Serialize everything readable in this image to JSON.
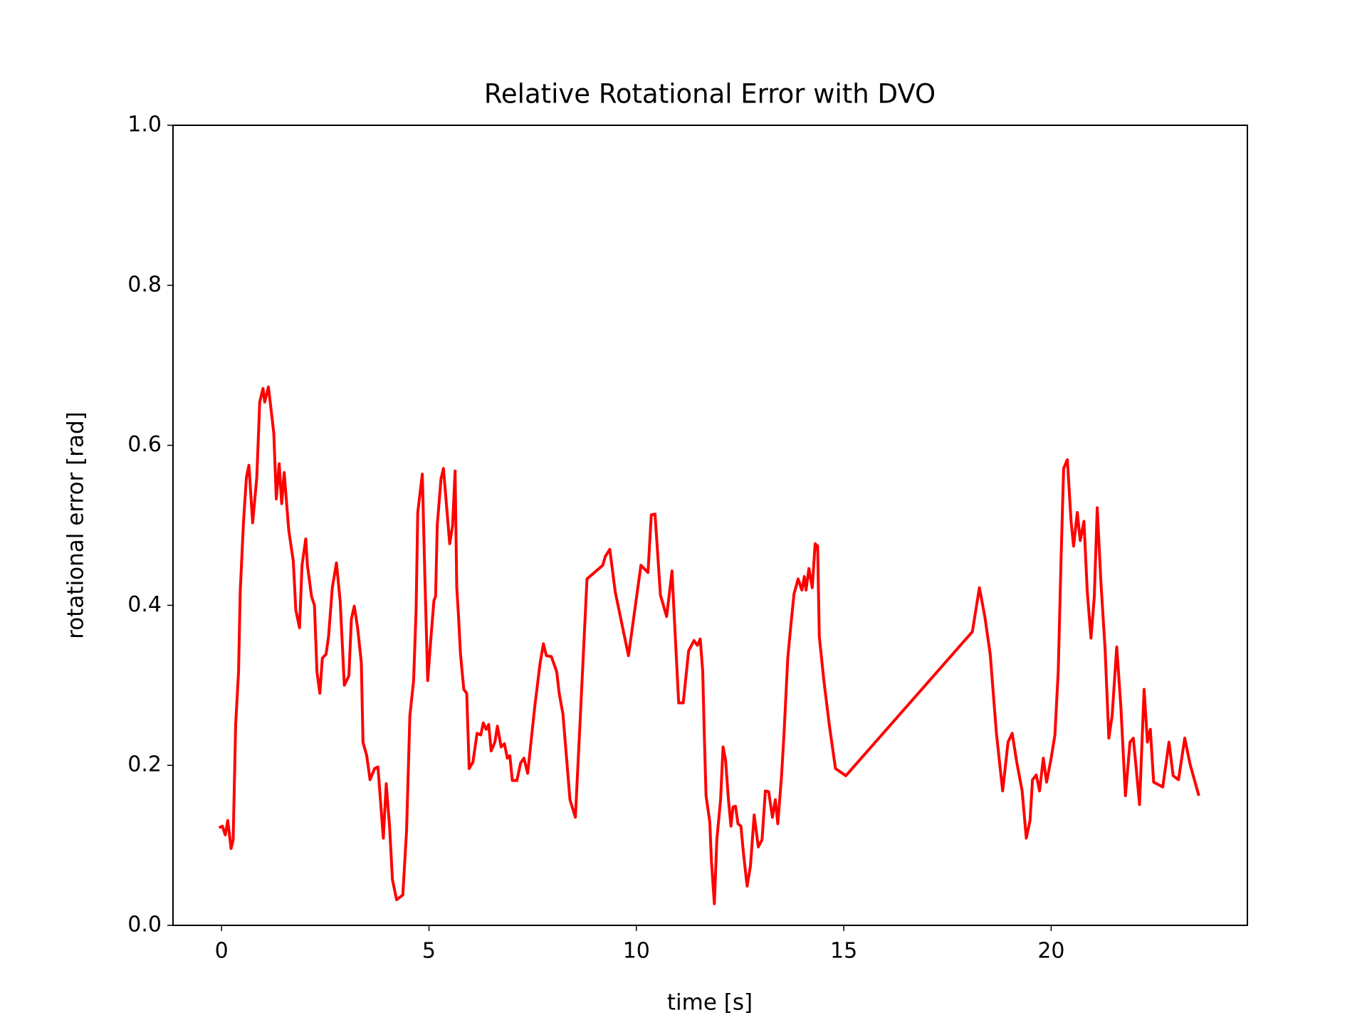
{
  "chart_data": {
    "type": "line",
    "title": "Relative Rotational Error with DVO",
    "x_label": "time [s]",
    "y_label": "rotational error [rad]",
    "xlim": [
      -1.17,
      24.73
    ],
    "ylim": [
      0,
      1
    ],
    "xticks": [
      0,
      5,
      10,
      15,
      20
    ],
    "yticks": [
      {
        "value": 0,
        "label": "0.0"
      },
      0.2,
      0.4,
      0.6,
      0.8,
      {
        "value": 1,
        "label": "1.0"
      }
    ],
    "grid": false,
    "series": [
      {
        "color": "#ff0000",
        "x": [
          -0.06,
          0.02,
          0.09,
          0.15,
          0.23,
          0.28,
          0.34,
          0.41,
          0.45,
          0.53,
          0.6,
          0.66,
          0.75,
          0.85,
          0.92,
          1.0,
          1.04,
          1.13,
          1.26,
          1.32,
          1.39,
          1.45,
          1.51,
          1.62,
          1.73,
          1.79,
          1.88,
          1.94,
          2.03,
          2.07,
          2.17,
          2.24,
          2.3,
          2.37,
          2.43,
          2.52,
          2.58,
          2.67,
          2.77,
          2.86,
          2.96,
          3.07,
          3.13,
          3.2,
          3.28,
          3.37,
          3.41,
          3.5,
          3.58,
          3.69,
          3.77,
          3.9,
          3.97,
          4.05,
          4.12,
          4.22,
          4.37,
          4.46,
          4.54,
          4.63,
          4.69,
          4.73,
          4.84,
          4.9,
          4.97,
          5.05,
          5.12,
          5.16,
          5.2,
          5.29,
          5.35,
          5.42,
          5.5,
          5.57,
          5.63,
          5.67,
          5.71,
          5.76,
          5.84,
          5.91,
          5.97,
          6.06,
          6.16,
          6.25,
          6.31,
          6.38,
          6.44,
          6.5,
          6.59,
          6.65,
          6.74,
          6.82,
          6.89,
          6.95,
          7.01,
          7.12,
          7.21,
          7.29,
          7.38,
          7.46,
          7.55,
          7.68,
          7.76,
          7.83,
          7.95,
          8.08,
          8.14,
          8.23,
          8.4,
          8.53,
          8.64,
          8.81,
          9.19,
          9.25,
          9.36,
          9.49,
          9.81,
          10.11,
          10.28,
          10.36,
          10.45,
          10.58,
          10.73,
          10.86,
          10.9,
          11.02,
          11.13,
          11.26,
          11.39,
          11.47,
          11.54,
          11.6,
          11.64,
          11.68,
          11.77,
          11.81,
          11.88,
          11.94,
          12.03,
          12.09,
          12.15,
          12.22,
          12.28,
          12.33,
          12.39,
          12.45,
          12.52,
          12.58,
          12.67,
          12.75,
          12.84,
          12.94,
          13.03,
          13.11,
          13.19,
          13.28,
          13.35,
          13.41,
          13.5,
          13.56,
          13.65,
          13.73,
          13.8,
          13.9,
          13.99,
          14.05,
          14.09,
          14.16,
          14.24,
          14.31,
          14.37,
          14.41,
          14.52,
          14.65,
          14.8,
          15.05,
          18.1,
          18.27,
          18.4,
          18.53,
          18.68,
          18.83,
          18.96,
          19.06,
          19.17,
          19.3,
          19.4,
          19.49,
          19.55,
          19.64,
          19.72,
          19.81,
          19.89,
          20.0,
          20.09,
          20.17,
          20.24,
          20.3,
          20.39,
          20.48,
          20.54,
          20.63,
          20.7,
          20.79,
          20.87,
          20.96,
          21.04,
          21.11,
          21.2,
          21.3,
          21.39,
          21.47,
          21.58,
          21.68,
          21.79,
          21.9,
          21.98,
          22.05,
          22.13,
          22.24,
          22.32,
          22.39,
          22.47,
          22.69,
          22.84,
          22.94,
          23.07,
          23.22,
          23.35,
          23.56
        ],
        "values": [
          0.122,
          0.124,
          0.113,
          0.131,
          0.096,
          0.107,
          0.251,
          0.317,
          0.417,
          0.505,
          0.56,
          0.575,
          0.503,
          0.56,
          0.654,
          0.671,
          0.654,
          0.673,
          0.615,
          0.533,
          0.577,
          0.527,
          0.566,
          0.494,
          0.455,
          0.394,
          0.372,
          0.45,
          0.483,
          0.45,
          0.411,
          0.4,
          0.317,
          0.29,
          0.334,
          0.339,
          0.361,
          0.422,
          0.453,
          0.405,
          0.3,
          0.312,
          0.383,
          0.399,
          0.372,
          0.328,
          0.229,
          0.212,
          0.182,
          0.196,
          0.198,
          0.109,
          0.177,
          0.124,
          0.057,
          0.032,
          0.038,
          0.118,
          0.262,
          0.306,
          0.394,
          0.516,
          0.564,
          0.439,
          0.306,
          0.361,
          0.406,
          0.411,
          0.5,
          0.558,
          0.571,
          0.527,
          0.477,
          0.5,
          0.568,
          0.422,
          0.389,
          0.339,
          0.295,
          0.29,
          0.196,
          0.204,
          0.24,
          0.238,
          0.253,
          0.245,
          0.251,
          0.218,
          0.229,
          0.249,
          0.223,
          0.227,
          0.209,
          0.212,
          0.181,
          0.181,
          0.203,
          0.209,
          0.19,
          0.229,
          0.273,
          0.328,
          0.352,
          0.337,
          0.336,
          0.317,
          0.29,
          0.264,
          0.157,
          0.135,
          0.251,
          0.433,
          0.45,
          0.461,
          0.47,
          0.417,
          0.337,
          0.45,
          0.441,
          0.513,
          0.514,
          0.413,
          0.386,
          0.443,
          0.4,
          0.278,
          0.278,
          0.343,
          0.356,
          0.35,
          0.358,
          0.317,
          0.234,
          0.162,
          0.129,
          0.08,
          0.027,
          0.107,
          0.157,
          0.223,
          0.207,
          0.157,
          0.124,
          0.148,
          0.149,
          0.127,
          0.124,
          0.091,
          0.049,
          0.074,
          0.138,
          0.098,
          0.107,
          0.168,
          0.167,
          0.135,
          0.157,
          0.127,
          0.187,
          0.24,
          0.334,
          0.378,
          0.414,
          0.433,
          0.419,
          0.436,
          0.419,
          0.446,
          0.422,
          0.477,
          0.474,
          0.361,
          0.306,
          0.251,
          0.196,
          0.187,
          0.367,
          0.422,
          0.386,
          0.339,
          0.24,
          0.168,
          0.229,
          0.24,
          0.204,
          0.168,
          0.109,
          0.131,
          0.182,
          0.188,
          0.168,
          0.209,
          0.179,
          0.209,
          0.238,
          0.317,
          0.461,
          0.571,
          0.582,
          0.505,
          0.474,
          0.516,
          0.481,
          0.505,
          0.417,
          0.359,
          0.411,
          0.522,
          0.428,
          0.345,
          0.234,
          0.262,
          0.348,
          0.273,
          0.162,
          0.229,
          0.234,
          0.196,
          0.151,
          0.295,
          0.229,
          0.245,
          0.179,
          0.173,
          0.229,
          0.187,
          0.182,
          0.234,
          0.201,
          0.162
        ]
      }
    ]
  }
}
